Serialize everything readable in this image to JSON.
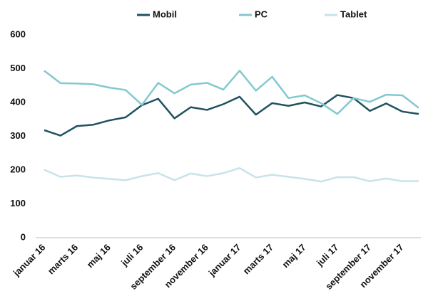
{
  "chart_data": {
    "type": "line",
    "categories": [
      "januar 16",
      null,
      "marts 16",
      null,
      "maj 16",
      null,
      "juli 16",
      null,
      "september 16",
      null,
      "november 16",
      null,
      "januar 17",
      null,
      "marts 17",
      null,
      "maj 17",
      null,
      "juli 17",
      null,
      "september 17",
      null,
      "november 17",
      null
    ],
    "series": [
      {
        "name": "Mobil",
        "color": "#1f5160",
        "values": [
          318,
          302,
          330,
          334,
          347,
          356,
          392,
          411,
          353,
          386,
          378,
          395,
          417,
          364,
          398,
          390,
          400,
          388,
          422,
          413,
          375,
          397,
          373,
          366
        ]
      },
      {
        "name": "PC",
        "color": "#84c8d0",
        "values": [
          494,
          457,
          456,
          454,
          444,
          437,
          393,
          458,
          427,
          453,
          458,
          438,
          494,
          435,
          476,
          413,
          421,
          398,
          366,
          413,
          402,
          423,
          421,
          384
        ]
      },
      {
        "name": "Tablet",
        "color": "#c8e2ec",
        "values": [
          201,
          180,
          184,
          178,
          174,
          170,
          182,
          191,
          170,
          190,
          182,
          191,
          206,
          178,
          186,
          180,
          174,
          166,
          179,
          179,
          167,
          175,
          167,
          167
        ]
      }
    ],
    "ylim": [
      0,
      600
    ],
    "yticks": [
      0,
      100,
      200,
      300,
      400,
      500,
      600
    ],
    "grid": false,
    "legend": "top"
  }
}
